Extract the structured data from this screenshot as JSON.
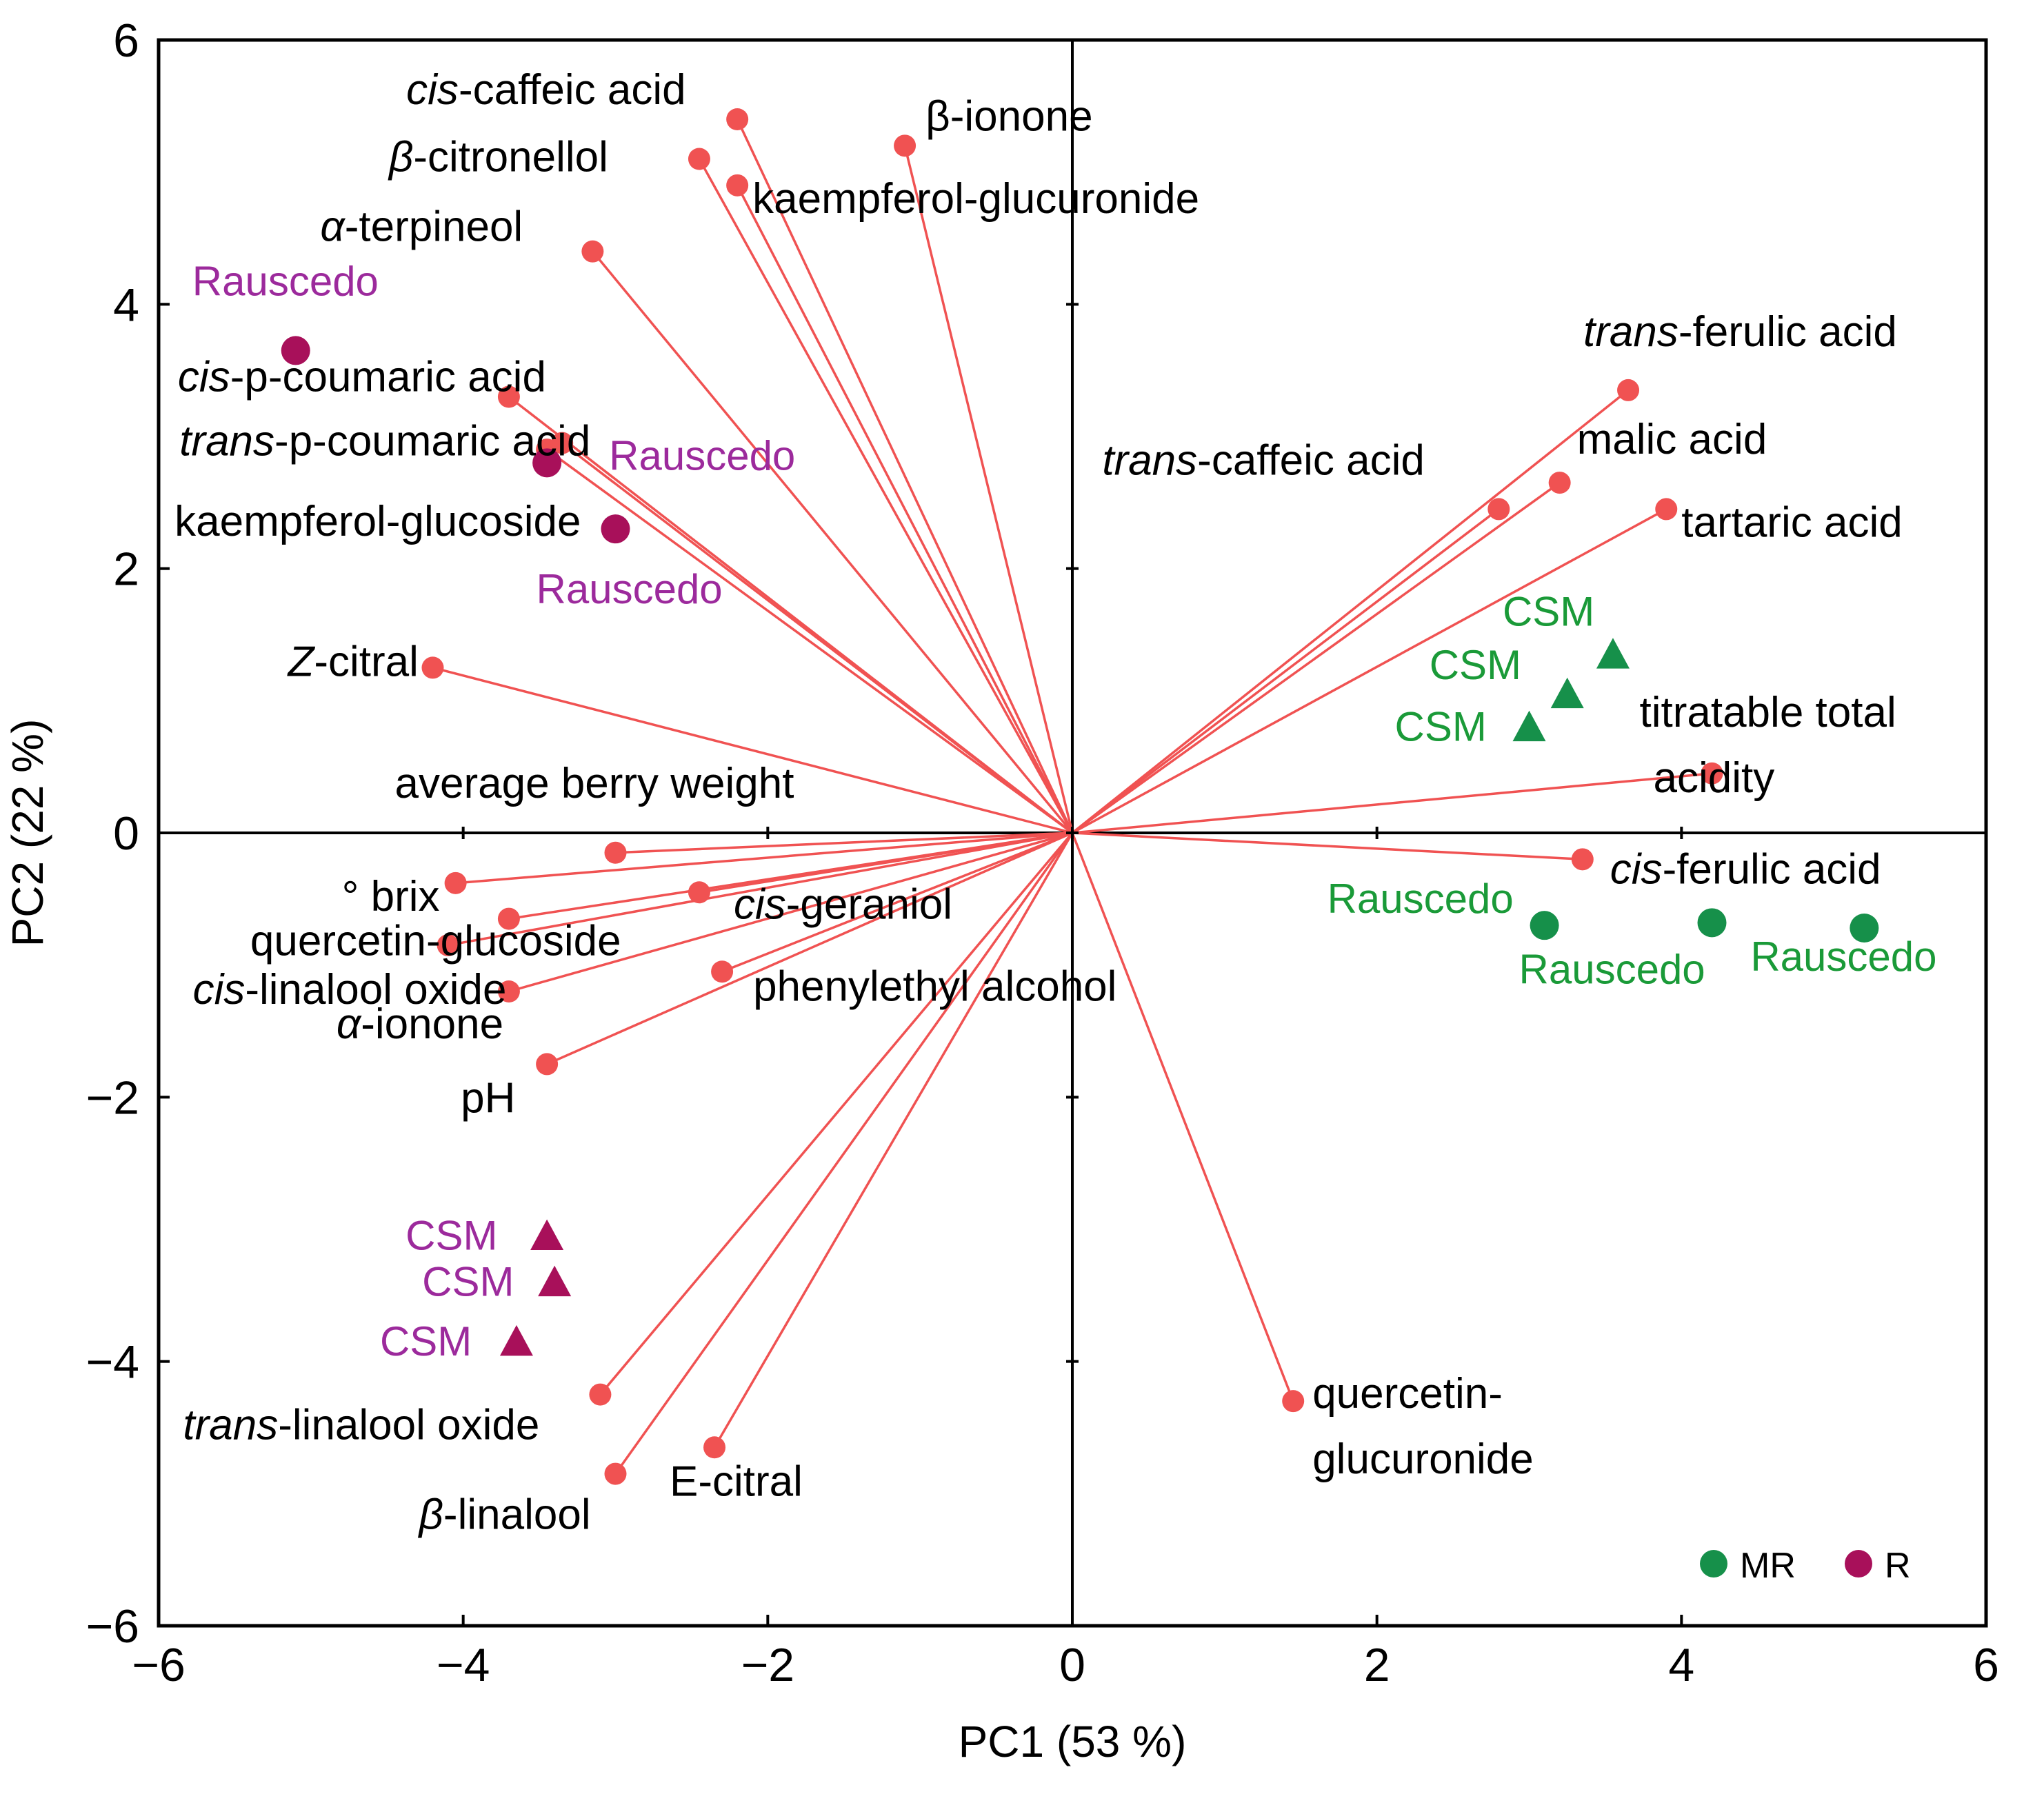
{
  "chart_data": {
    "type": "scatter",
    "subtype": "pca-biplot",
    "xlabel": "PC1 (53 %)",
    "ylabel": "PC2 (22 %)",
    "xlim": [
      -6,
      6
    ],
    "ylim": [
      -6,
      6
    ],
    "x_ticks": [
      -6,
      -4,
      -2,
      0,
      2,
      4,
      6
    ],
    "y_ticks": [
      -6,
      -4,
      -2,
      0,
      2,
      4,
      6
    ],
    "x_tick_labels": [
      "−6",
      "−4",
      "−2",
      "0",
      "2",
      "4",
      "6"
    ],
    "y_tick_labels": [
      "−6",
      "−4",
      "−2",
      "0",
      "2",
      "4",
      "6"
    ],
    "grid": false,
    "zero_lines": true,
    "loadings_color": "#f05252",
    "group_colors": {
      "MR": "#16904a",
      "R": "#a8105a"
    },
    "sample_label_colors": {
      "MR": "#1a9a38",
      "R": "#9c2a9c"
    },
    "loadings": [
      {
        "pre": "cis",
        "post": "-caffeic acid",
        "x": -2.2,
        "y": 5.4
      },
      {
        "pre": "β",
        "post": "-citronellol",
        "x": -2.45,
        "y": 5.1
      },
      {
        "pre": "",
        "post": "kaempferol-glucuronide",
        "x": -2.2,
        "y": 4.9
      },
      {
        "pre": "",
        "post": "β-ionone",
        "x": -1.1,
        "y": 5.2
      },
      {
        "pre": "α",
        "post": "-terpineol",
        "x": -3.15,
        "y": 4.4
      },
      {
        "pre": "cis",
        "post": "-p-coumaric acid",
        "x": -3.7,
        "y": 3.3
      },
      {
        "pre": "trans",
        "post": "-p-coumaric acid",
        "x": -3.35,
        "y": 2.95
      },
      {
        "pre": "",
        "post": "kaempferol-glucoside",
        "x": -3.45,
        "y": 2.9
      },
      {
        "pre": "Z",
        "post": "-citral",
        "x": -4.2,
        "y": 1.25
      },
      {
        "pre": "",
        "post": "average berry weight",
        "x": -3.0,
        "y": -0.15
      },
      {
        "pre": "",
        "post": "° brix",
        "x": -4.05,
        "y": -0.38
      },
      {
        "pre": "",
        "post": "quercetin-glucoside",
        "x": -3.7,
        "y": -0.65
      },
      {
        "pre": "cis",
        "post": "-linalool oxide",
        "x": -4.1,
        "y": -0.85
      },
      {
        "pre": "cis",
        "post": "-geraniol",
        "x": -2.45,
        "y": -0.45
      },
      {
        "pre": "α",
        "post": "-ionone",
        "x": -3.7,
        "y": -1.2
      },
      {
        "pre": "",
        "post": "phenylethyl alcohol",
        "x": -2.3,
        "y": -1.05
      },
      {
        "pre": "",
        "post": "pH",
        "x": -3.45,
        "y": -1.75
      },
      {
        "pre": "trans",
        "post": "-linalool oxide",
        "x": -3.1,
        "y": -4.25
      },
      {
        "pre": "β",
        "post": "-linalool",
        "x": -3.0,
        "y": -4.85
      },
      {
        "pre": "",
        "post": "E-citral",
        "x": -2.35,
        "y": -4.65
      },
      {
        "pre": "trans",
        "post": "-ferulic acid",
        "x": 3.65,
        "y": 3.35
      },
      {
        "pre": "trans",
        "post": "-caffeic acid",
        "x": 2.8,
        "y": 2.45
      },
      {
        "pre": "",
        "post": "malic acid",
        "x": 3.2,
        "y": 2.65
      },
      {
        "pre": "",
        "post": "tartaric acid",
        "x": 3.9,
        "y": 2.45
      },
      {
        "pre": "",
        "post": "titratable total",
        "post2": "acidity",
        "x": 4.2,
        "y": 0.45
      },
      {
        "pre": "cis",
        "post": "-ferulic acid",
        "x": 3.35,
        "y": -0.2
      },
      {
        "pre": "",
        "post": "quercetin-",
        "post2": "glucuronide",
        "x": 1.45,
        "y": -4.3
      }
    ],
    "samples": [
      {
        "label": "Rauscedo",
        "group": "R",
        "shape": "circle",
        "x": -5.1,
        "y": 3.65
      },
      {
        "label": "Rauscedo",
        "group": "R",
        "shape": "circle",
        "x": -3.45,
        "y": 2.8
      },
      {
        "label": "Rauscedo",
        "group": "R",
        "shape": "circle",
        "x": -3.0,
        "y": 2.3
      },
      {
        "label": "CSM",
        "group": "R",
        "shape": "triangle",
        "x": -3.45,
        "y": -3.05
      },
      {
        "label": "CSM",
        "group": "R",
        "shape": "triangle",
        "x": -3.4,
        "y": -3.4
      },
      {
        "label": "CSM",
        "group": "R",
        "shape": "triangle",
        "x": -3.65,
        "y": -3.85
      },
      {
        "label": "CSM",
        "group": "MR",
        "shape": "triangle",
        "x": 3.55,
        "y": 1.35
      },
      {
        "label": "CSM",
        "group": "MR",
        "shape": "triangle",
        "x": 3.25,
        "y": 1.05
      },
      {
        "label": "CSM",
        "group": "MR",
        "shape": "triangle",
        "x": 3.0,
        "y": 0.8
      },
      {
        "label": "Rauscedo",
        "group": "MR",
        "shape": "circle",
        "x": 3.1,
        "y": -0.7
      },
      {
        "label": "Rauscedo",
        "group": "MR",
        "shape": "circle",
        "x": 4.2,
        "y": -0.68
      },
      {
        "label": "Rauscedo",
        "group": "MR",
        "shape": "circle",
        "x": 5.2,
        "y": -0.72
      }
    ],
    "legend": {
      "placement": "bottom-right",
      "entries": [
        {
          "label": "MR",
          "group": "MR"
        },
        {
          "label": "R",
          "group": "R"
        }
      ]
    }
  }
}
